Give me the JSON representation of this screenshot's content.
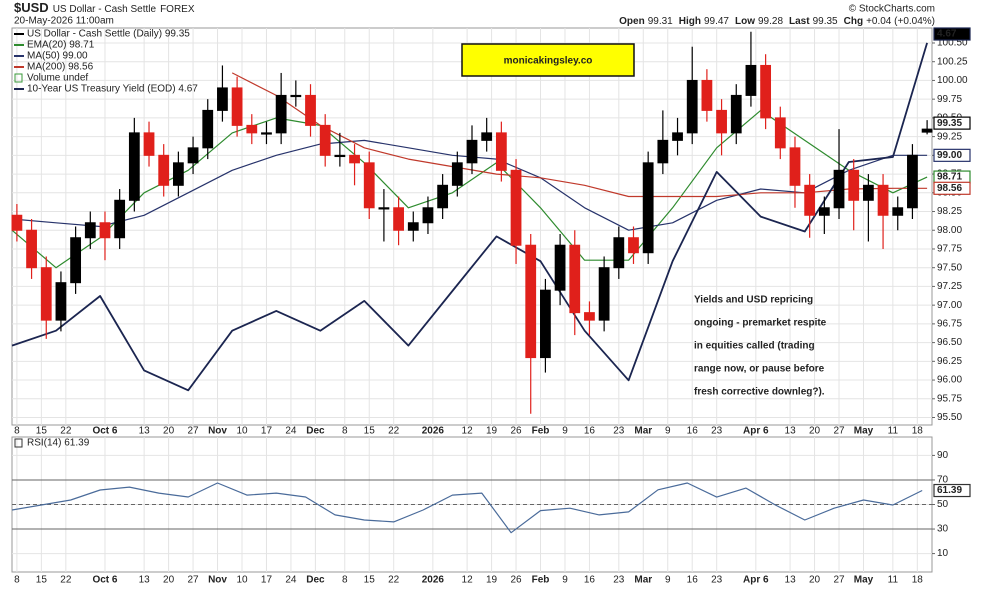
{
  "chart_data": [
    {
      "type": "candlestick",
      "symbol": "$USD",
      "name": "US Dollar - Cash Settle",
      "exchange": "FOREX",
      "date": "20-May-2026 11:00am",
      "credit": "© StockCharts.com",
      "quote": [
        {
          "label": "Open",
          "text": "99.31"
        },
        {
          "label": "High",
          "text": "99.47"
        },
        {
          "label": "Low",
          "text": "99.28"
        },
        {
          "label": "Last",
          "text": "99.35"
        },
        {
          "label": "Chg",
          "text": "+0.04 (+0.04%)"
        }
      ],
      "xlim": [
        0,
        188
      ],
      "xticks": [
        {
          "value": 1,
          "label": "8"
        },
        {
          "value": 6,
          "label": "15"
        },
        {
          "value": 11,
          "label": "22"
        },
        {
          "value": 19,
          "label": "Oct 6"
        },
        {
          "value": 27,
          "label": "13"
        },
        {
          "value": 32,
          "label": "20"
        },
        {
          "value": 37,
          "label": "27"
        },
        {
          "value": 42,
          "label": "Nov"
        },
        {
          "value": 47,
          "label": "10"
        },
        {
          "value": 52,
          "label": "17"
        },
        {
          "value": 57,
          "label": "24"
        },
        {
          "value": 62,
          "label": "Dec"
        },
        {
          "value": 68,
          "label": "8"
        },
        {
          "value": 73,
          "label": "15"
        },
        {
          "value": 78,
          "label": "22"
        },
        {
          "value": 86,
          "label": "2026"
        },
        {
          "value": 93,
          "label": "12"
        },
        {
          "value": 98,
          "label": "19"
        },
        {
          "value": 103,
          "label": "26"
        },
        {
          "value": 108,
          "label": "Feb"
        },
        {
          "value": 113,
          "label": "9"
        },
        {
          "value": 118,
          "label": "16"
        },
        {
          "value": 124,
          "label": "23"
        },
        {
          "value": 129,
          "label": "Mar"
        },
        {
          "value": 134,
          "label": "9"
        },
        {
          "value": 139,
          "label": "16"
        },
        {
          "value": 144,
          "label": "23"
        },
        {
          "value": 152,
          "label": "Apr 6"
        },
        {
          "value": 159,
          "label": "13"
        },
        {
          "value": 164,
          "label": "20"
        },
        {
          "value": 169,
          "label": "27"
        },
        {
          "value": 174,
          "label": "May"
        },
        {
          "value": 180,
          "label": "11"
        },
        {
          "value": 185,
          "label": "18"
        }
      ],
      "ylim": [
        95.4,
        100.7
      ],
      "yticks": [
        {
          "value": 95.5,
          "label": "95.50"
        },
        {
          "value": 95.75,
          "label": "95.75"
        },
        {
          "value": 96,
          "label": "96.00"
        },
        {
          "value": 96.25,
          "label": "96.25"
        },
        {
          "value": 96.5,
          "label": "96.50"
        },
        {
          "value": 96.75,
          "label": "96.75"
        },
        {
          "value": 97,
          "label": "97.00"
        },
        {
          "value": 97.25,
          "label": "97.25"
        },
        {
          "value": 97.5,
          "label": "97.50"
        },
        {
          "value": 97.75,
          "label": "97.75"
        },
        {
          "value": 98,
          "label": "98.00"
        },
        {
          "value": 98.25,
          "label": "98.25"
        },
        {
          "value": 98.5,
          "label": "98.50"
        },
        {
          "value": 98.75,
          "label": "98.75"
        },
        {
          "value": 99,
          "label": "99.00"
        },
        {
          "value": 99.25,
          "label": "99.25"
        },
        {
          "value": 99.5,
          "label": "99.50"
        },
        {
          "value": 99.75,
          "label": "99.75"
        },
        {
          "value": 100,
          "label": "100.00"
        },
        {
          "value": 100.25,
          "label": "100.25"
        },
        {
          "value": 100.5,
          "label": "100.50"
        }
      ],
      "y2lim": [
        3.9,
        4.7
      ],
      "grid": true,
      "candles": {
        "name": "US Dollar - Cash Settle (Daily) 99.35",
        "up_color": "#000000",
        "down_color": "#e0201b",
        "last_label": "99.35",
        "x": [
          1,
          4,
          7,
          10,
          13,
          16,
          19,
          22,
          25,
          28,
          31,
          34,
          37,
          40,
          43,
          46,
          49,
          52,
          55,
          58,
          61,
          64,
          67,
          70,
          73,
          76,
          79,
          82,
          85,
          88,
          91,
          94,
          97,
          100,
          103,
          106,
          109,
          112,
          115,
          118,
          121,
          124,
          127,
          130,
          133,
          136,
          139,
          142,
          145,
          148,
          151,
          154,
          157,
          160,
          163,
          166,
          169,
          172,
          175,
          178,
          181,
          184,
          187
        ],
        "open": [
          98.2,
          98.0,
          97.5,
          96.8,
          97.3,
          97.9,
          98.1,
          97.9,
          98.4,
          99.3,
          99.0,
          98.6,
          98.9,
          99.1,
          99.6,
          99.9,
          99.4,
          99.3,
          99.3,
          99.8,
          99.8,
          99.4,
          99.0,
          99.0,
          98.9,
          98.3,
          98.3,
          98.0,
          98.1,
          98.3,
          98.6,
          98.9,
          99.2,
          99.3,
          98.8,
          97.8,
          96.3,
          97.2,
          97.8,
          96.9,
          96.8,
          97.5,
          97.9,
          97.7,
          98.9,
          99.2,
          99.3,
          100.0,
          99.6,
          99.3,
          99.8,
          100.2,
          99.5,
          99.1,
          98.6,
          98.2,
          98.3,
          98.8,
          98.4,
          98.6,
          98.2,
          98.3,
          99.31
        ],
        "high": [
          98.35,
          98.15,
          97.65,
          97.45,
          98.05,
          98.25,
          98.25,
          98.55,
          99.5,
          99.45,
          99.15,
          99.05,
          99.25,
          99.75,
          100.2,
          100.05,
          99.55,
          99.45,
          100.1,
          100.0,
          99.95,
          99.55,
          99.3,
          99.15,
          99.05,
          98.55,
          98.45,
          98.25,
          98.45,
          98.75,
          99.05,
          99.4,
          99.5,
          99.45,
          98.95,
          97.95,
          97.35,
          97.95,
          98.0,
          97.05,
          97.65,
          98.05,
          98.05,
          99.05,
          99.6,
          99.5,
          100.45,
          100.15,
          99.75,
          99.95,
          100.65,
          100.35,
          99.65,
          99.25,
          98.75,
          98.45,
          99.35,
          98.95,
          98.75,
          98.75,
          98.45,
          99.15,
          99.47
        ],
        "low": [
          97.85,
          97.35,
          96.55,
          96.65,
          97.15,
          97.75,
          97.6,
          97.75,
          98.25,
          98.85,
          98.45,
          98.45,
          98.75,
          98.95,
          99.45,
          99.25,
          99.15,
          99.15,
          99.15,
          99.65,
          99.25,
          98.85,
          98.85,
          98.6,
          98.15,
          97.85,
          97.8,
          97.85,
          97.95,
          98.15,
          98.45,
          98.75,
          99.05,
          98.65,
          97.55,
          95.55,
          96.1,
          97.0,
          96.6,
          96.6,
          96.65,
          97.35,
          97.55,
          97.55,
          98.75,
          99.0,
          99.15,
          99.45,
          99.0,
          99.15,
          99.65,
          99.35,
          98.95,
          98.3,
          97.9,
          97.95,
          98.15,
          98.0,
          97.85,
          97.75,
          98.0,
          98.15,
          99.28
        ],
        "close": [
          98.0,
          97.5,
          96.8,
          97.3,
          97.9,
          98.1,
          97.9,
          98.4,
          99.3,
          99.0,
          98.6,
          98.9,
          99.1,
          99.6,
          99.9,
          99.4,
          99.3,
          99.3,
          99.8,
          99.8,
          99.4,
          99.0,
          99.0,
          98.9,
          98.3,
          98.3,
          98.0,
          98.1,
          98.3,
          98.6,
          98.9,
          99.2,
          99.3,
          98.8,
          97.8,
          96.3,
          97.2,
          97.8,
          96.9,
          96.8,
          97.5,
          97.9,
          97.7,
          98.9,
          99.2,
          99.3,
          100.0,
          99.6,
          99.3,
          99.8,
          100.2,
          99.5,
          99.1,
          98.6,
          98.2,
          98.3,
          98.8,
          98.4,
          98.6,
          98.2,
          98.3,
          99.0,
          99.35
        ]
      },
      "series": [
        {
          "name": "EMA(20) 98.71",
          "color": "#2e8b2e",
          "last_label": "98.71",
          "x": [
            0,
            9,
            18,
            27,
            36,
            45,
            54,
            63,
            72,
            81,
            90,
            99,
            108,
            117,
            126,
            135,
            144,
            153,
            162,
            171,
            180,
            187
          ],
          "values": [
            98.0,
            97.5,
            97.9,
            98.5,
            98.8,
            99.3,
            99.5,
            99.4,
            98.9,
            98.3,
            98.5,
            98.9,
            98.3,
            97.6,
            97.6,
            98.3,
            99.1,
            99.6,
            99.2,
            98.8,
            98.5,
            98.71
          ]
        },
        {
          "name": "MA(50) 99.00",
          "color": "#27336b",
          "last_label": "99.00",
          "x": [
            0,
            9,
            18,
            27,
            36,
            45,
            54,
            63,
            72,
            81,
            90,
            99,
            108,
            117,
            126,
            135,
            144,
            153,
            162,
            171,
            180,
            187
          ],
          "values": [
            98.15,
            98.1,
            98.05,
            98.2,
            98.5,
            98.8,
            99.0,
            99.15,
            99.2,
            99.1,
            99.0,
            98.95,
            98.7,
            98.3,
            98.0,
            98.1,
            98.4,
            98.55,
            98.5,
            98.8,
            99.0,
            99.0
          ]
        },
        {
          "name": "MA(200) 98.56",
          "color": "#c0392b",
          "last_label": "98.56",
          "x": [
            0,
            9,
            18,
            27,
            36,
            45,
            54,
            63,
            72,
            81,
            90,
            99,
            108,
            117,
            126,
            135,
            144,
            153,
            162,
            171,
            180,
            187
          ],
          "values": [
            null,
            null,
            null,
            null,
            null,
            100.1,
            99.8,
            99.4,
            99.1,
            98.95,
            98.85,
            98.75,
            98.7,
            98.6,
            98.45,
            98.45,
            98.45,
            98.5,
            98.5,
            98.55,
            98.56,
            98.56
          ]
        },
        {
          "name": "10-Year US Treasury Yield (EOD) 4.67",
          "color": "#1b2550",
          "axis": "y2",
          "last_label": "4.67",
          "x": [
            0,
            9,
            18,
            27,
            36,
            45,
            54,
            63,
            72,
            81,
            90,
            99,
            108,
            117,
            126,
            135,
            144,
            153,
            162,
            171,
            180,
            187
          ],
          "values": [
            4.06,
            4.09,
            4.16,
            4.01,
            3.97,
            4.09,
            4.13,
            4.09,
            4.15,
            4.06,
            4.17,
            4.28,
            4.23,
            4.09,
            3.99,
            4.23,
            4.41,
            4.32,
            4.29,
            4.43,
            4.44,
            4.67
          ]
        }
      ],
      "legend_extra": [
        "Volume undef"
      ],
      "watermark": "monicakingsley.co",
      "annotation": [
        "Yields and USD repricing",
        "ongoing - premarket respite",
        "in equities called (trading",
        "range now, or pause before",
        "fresh corrective downleg?)."
      ]
    },
    {
      "type": "line",
      "title": "RSI(14) 61.39",
      "last_label": "61.39",
      "xlim": [
        0,
        188
      ],
      "xticks": [
        {
          "value": 1,
          "label": "8"
        },
        {
          "value": 6,
          "label": "15"
        },
        {
          "value": 11,
          "label": "22"
        },
        {
          "value": 19,
          "label": "Oct 6"
        },
        {
          "value": 27,
          "label": "13"
        },
        {
          "value": 32,
          "label": "20"
        },
        {
          "value": 37,
          "label": "27"
        },
        {
          "value": 42,
          "label": "Nov"
        },
        {
          "value": 47,
          "label": "10"
        },
        {
          "value": 52,
          "label": "17"
        },
        {
          "value": 57,
          "label": "24"
        },
        {
          "value": 62,
          "label": "Dec"
        },
        {
          "value": 68,
          "label": "8"
        },
        {
          "value": 73,
          "label": "15"
        },
        {
          "value": 78,
          "label": "22"
        },
        {
          "value": 86,
          "label": "2026"
        },
        {
          "value": 93,
          "label": "12"
        },
        {
          "value": 98,
          "label": "19"
        },
        {
          "value": 103,
          "label": "26"
        },
        {
          "value": 108,
          "label": "Feb"
        },
        {
          "value": 113,
          "label": "9"
        },
        {
          "value": 118,
          "label": "16"
        },
        {
          "value": 124,
          "label": "23"
        },
        {
          "value": 129,
          "label": "Mar"
        },
        {
          "value": 134,
          "label": "9"
        },
        {
          "value": 139,
          "label": "16"
        },
        {
          "value": 144,
          "label": "23"
        },
        {
          "value": 152,
          "label": "Apr 6"
        },
        {
          "value": 159,
          "label": "13"
        },
        {
          "value": 164,
          "label": "20"
        },
        {
          "value": 169,
          "label": "27"
        },
        {
          "value": 174,
          "label": "May"
        },
        {
          "value": 180,
          "label": "11"
        },
        {
          "value": 185,
          "label": "18"
        }
      ],
      "ylim": [
        -5,
        105
      ],
      "yticks": [
        10,
        30,
        50,
        70,
        90
      ],
      "band_lines": [
        30,
        70
      ],
      "dashed_line": 50,
      "series": [
        {
          "color": "#4a6b9a",
          "x": [
            0,
            6,
            12,
            18,
            24,
            30,
            36,
            42,
            48,
            54,
            60,
            66,
            72,
            78,
            84,
            90,
            96,
            102,
            108,
            114,
            120,
            126,
            132,
            138,
            144,
            150,
            156,
            162,
            168,
            174,
            180,
            186
          ],
          "values": [
            45.5,
            49.6,
            53.7,
            61.8,
            64.2,
            59.3,
            56.1,
            67.5,
            57.7,
            59.3,
            56.1,
            41.5,
            37.4,
            35.8,
            45.5,
            57.7,
            59.3,
            27,
            45,
            47,
            41.5,
            44,
            62,
            67.5,
            56,
            63.4,
            49.6,
            37.4,
            47,
            53.7,
            49.6,
            61.39
          ]
        }
      ]
    }
  ]
}
